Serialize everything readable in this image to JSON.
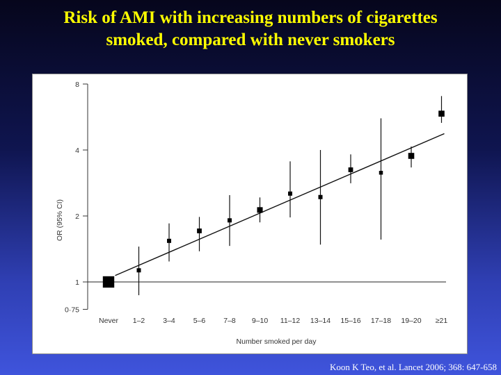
{
  "slide": {
    "title_line1": "Risk of AMI with increasing numbers of cigarettes",
    "title_line2": "smoked, compared with never smokers",
    "source": "Koon K Teo, et al. Lancet 2006; 368: 647-658"
  },
  "chart_data": {
    "type": "scatter",
    "title": "",
    "xlabel": "Number smoked per day",
    "ylabel": "OR (95% CI)",
    "y_scale": "log",
    "ylim": [
      0.75,
      8
    ],
    "yticks": [
      0.75,
      1,
      2,
      4,
      8
    ],
    "ytick_labels": [
      "0·75",
      "1",
      "2",
      "4",
      "8"
    ],
    "reference_line": 1,
    "categories": [
      "Never",
      "1–2",
      "3–4",
      "5–6",
      "7–8",
      "9–10",
      "11–12",
      "13–14",
      "15–16",
      "17–18",
      "19–20",
      "≥21"
    ],
    "series": [
      {
        "values": [
          1.0,
          1.13,
          1.54,
          1.71,
          1.91,
          2.13,
          2.53,
          2.44,
          3.25,
          3.15,
          3.76,
          5.86
        ],
        "ci_low": [
          null,
          0.87,
          1.24,
          1.38,
          1.46,
          1.87,
          1.97,
          1.48,
          2.82,
          1.56,
          3.33,
          5.32
        ],
        "ci_high": [
          null,
          1.45,
          1.85,
          1.98,
          2.49,
          2.43,
          3.55,
          4.0,
          3.82,
          5.58,
          4.15,
          7.05
        ],
        "marker_weight": [
          5,
          1,
          1,
          1.3,
          1,
          1.8,
          1,
          1,
          1.3,
          0.8,
          2,
          2
        ]
      }
    ],
    "trend_line": {
      "from": {
        "category": "1–2",
        "value": 1.07
      },
      "to": {
        "category": "≥21",
        "value": 4.75
      }
    }
  }
}
